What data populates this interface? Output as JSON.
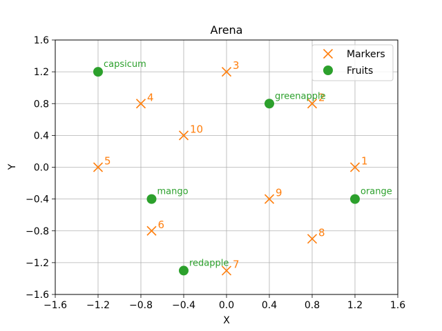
{
  "chart_data": {
    "type": "scatter",
    "title": "Arena",
    "xlabel": "X",
    "ylabel": "Y",
    "xlim": [
      -1.6,
      1.6
    ],
    "ylim": [
      -1.6,
      1.6
    ],
    "xticks": [
      -1.6,
      -1.2,
      -0.8,
      -0.4,
      0.0,
      0.4,
      0.8,
      1.2,
      1.6
    ],
    "yticks": [
      -1.6,
      -1.2,
      -0.8,
      -0.4,
      0.0,
      0.4,
      0.8,
      1.2,
      1.6
    ],
    "xtick_labels": [
      "−1.6",
      "−1.2",
      "−0.8",
      "−0.4",
      "0.0",
      "0.4",
      "0.8",
      "1.2",
      "1.6"
    ],
    "ytick_labels": [
      "−1.6",
      "−1.2",
      "−0.8",
      "−0.4",
      "0.0",
      "0.4",
      "0.8",
      "1.2",
      "1.6"
    ],
    "grid": true,
    "legend_position": "top-right",
    "series": [
      {
        "name": "Markers",
        "marker": "x",
        "color": "#ff7f0e",
        "label_color": "#ff7f0e",
        "points": [
          {
            "x": 1.2,
            "y": 0.0,
            "label": "1"
          },
          {
            "x": 0.8,
            "y": 0.8,
            "label": "2"
          },
          {
            "x": 0.0,
            "y": 1.2,
            "label": "3"
          },
          {
            "x": -0.8,
            "y": 0.8,
            "label": "4"
          },
          {
            "x": -1.2,
            "y": 0.0,
            "label": "5"
          },
          {
            "x": -0.7,
            "y": -0.8,
            "label": "6"
          },
          {
            "x": 0.0,
            "y": -1.3,
            "label": "7"
          },
          {
            "x": 0.8,
            "y": -0.9,
            "label": "8"
          },
          {
            "x": 0.4,
            "y": -0.4,
            "label": "9"
          },
          {
            "x": -0.4,
            "y": 0.4,
            "label": "10"
          }
        ]
      },
      {
        "name": "Fruits",
        "marker": "o",
        "color": "#2ca02c",
        "label_color": "#2ca02c",
        "points": [
          {
            "x": -1.2,
            "y": 1.2,
            "label": "capsicum"
          },
          {
            "x": 0.4,
            "y": 0.8,
            "label": "greenapple"
          },
          {
            "x": -0.7,
            "y": -0.4,
            "label": "mango"
          },
          {
            "x": 1.2,
            "y": -0.4,
            "label": "orange"
          },
          {
            "x": -0.4,
            "y": -1.3,
            "label": "redapple"
          }
        ]
      }
    ]
  }
}
